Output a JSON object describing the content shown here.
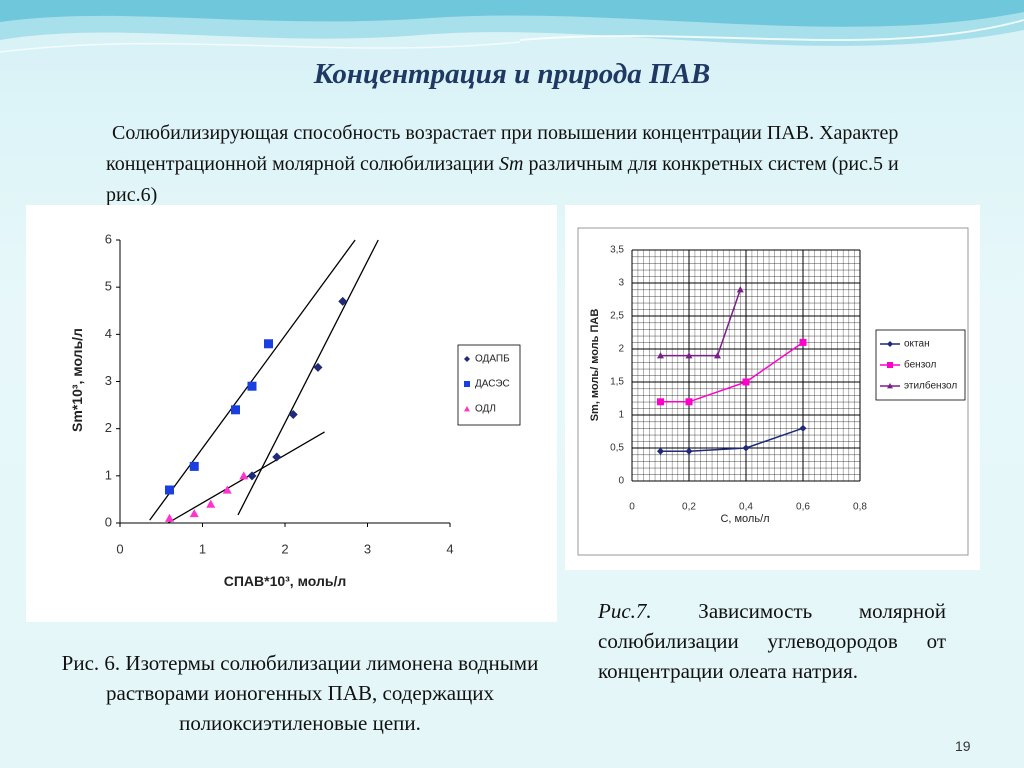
{
  "title": "Концентрация и природа ПАВ",
  "paragraph": {
    "before": "Солюбилизирующая способность возрастает при повышении концентрации ПАВ. Характер концентрационной молярной солюбилизации",
    "italic": "Sm",
    "after": "различным для конкретных систем (рис.5 и рис.6)"
  },
  "figure6_caption": {
    "label": "Рис. 6.",
    "text": "Изотермы солюбилизации лимонена водными растворами ионогенных ПАВ, содержащих полиоксиэтиленовые цепи."
  },
  "figure7_caption": {
    "label": "Рис.7.",
    "text": "Зависимость молярной солюбилизации углеводородов от концентрации олеата натрия."
  },
  "page_number": "19",
  "chart_data": [
    {
      "type": "scatter",
      "x_label": "CПАВ*10³, моль/л",
      "y_label": "Sm*10³, моль/л",
      "xlim": [
        0,
        4
      ],
      "xticks": [
        0,
        1,
        2,
        3,
        4
      ],
      "ylim": [
        0,
        6
      ],
      "yticks": [
        0,
        1,
        2,
        3,
        4,
        5,
        6
      ],
      "grid": false,
      "series": [
        {
          "name": "ОДАПБ",
          "color": "#1f2a7a",
          "marker": "diamond",
          "x": [
            1.6,
            1.9,
            2.1,
            2.4,
            2.7
          ],
          "y": [
            1.0,
            1.4,
            2.3,
            3.3,
            4.7
          ]
        },
        {
          "name": "ДАСЭС",
          "color": "#1a3fe0",
          "marker": "square",
          "x": [
            0.6,
            0.9,
            1.4,
            1.6,
            1.8
          ],
          "y": [
            0.7,
            1.2,
            2.4,
            2.9,
            3.8
          ]
        },
        {
          "name": "ОДЛ",
          "color": "#ff33cc",
          "marker": "triangle",
          "x": [
            0.6,
            0.9,
            1.1,
            1.3,
            1.5
          ],
          "y": [
            0.1,
            0.2,
            0.4,
            0.7,
            1.0
          ]
        }
      ],
      "fit_lines": [
        {
          "x": [
            0.36,
            2.85
          ],
          "y": [
            0.06,
            6
          ]
        },
        {
          "x": [
            1.43,
            3.13
          ],
          "y": [
            0.17,
            6
          ]
        },
        {
          "x": [
            0.58,
            2.48
          ],
          "y": [
            0,
            1.93
          ]
        }
      ]
    },
    {
      "type": "line",
      "x_label": "C, моль/л",
      "y_label": "Sm, моль/ моль ПАВ",
      "xlim": [
        0,
        0.8
      ],
      "xticks": [
        0,
        {
          "value": 0.2,
          "label": "0,2"
        },
        {
          "value": 0.4,
          "label": "0,4"
        },
        {
          "value": 0.6,
          "label": "0,6"
        },
        {
          "value": 0.8,
          "label": "0,8"
        }
      ],
      "ylim": [
        0,
        3.5
      ],
      "yticks": [
        0,
        {
          "value": 0.5,
          "label": "0,5"
        },
        1,
        {
          "value": 1.5,
          "label": "1,5"
        },
        2,
        {
          "value": 2.5,
          "label": "2,5"
        },
        3,
        {
          "value": 3.5,
          "label": "3,5"
        }
      ],
      "grid": true,
      "series": [
        {
          "name": "октан",
          "color": "#1f2a7a",
          "marker": "diamond",
          "x": [
            0.1,
            0.2,
            0.4,
            0.6
          ],
          "y": [
            0.45,
            0.45,
            0.5,
            0.8
          ]
        },
        {
          "name": "бензол",
          "color": "#ff00cc",
          "marker": "square",
          "x": [
            0.1,
            0.2,
            0.4,
            0.6
          ],
          "y": [
            1.2,
            1.2,
            1.5,
            2.1
          ]
        },
        {
          "name": "этилбензол",
          "color": "#7a1f8a",
          "marker": "triangle",
          "x": [
            0.1,
            0.2,
            0.3,
            0.38
          ],
          "y": [
            1.9,
            1.9,
            1.9,
            2.9
          ]
        }
      ]
    }
  ]
}
